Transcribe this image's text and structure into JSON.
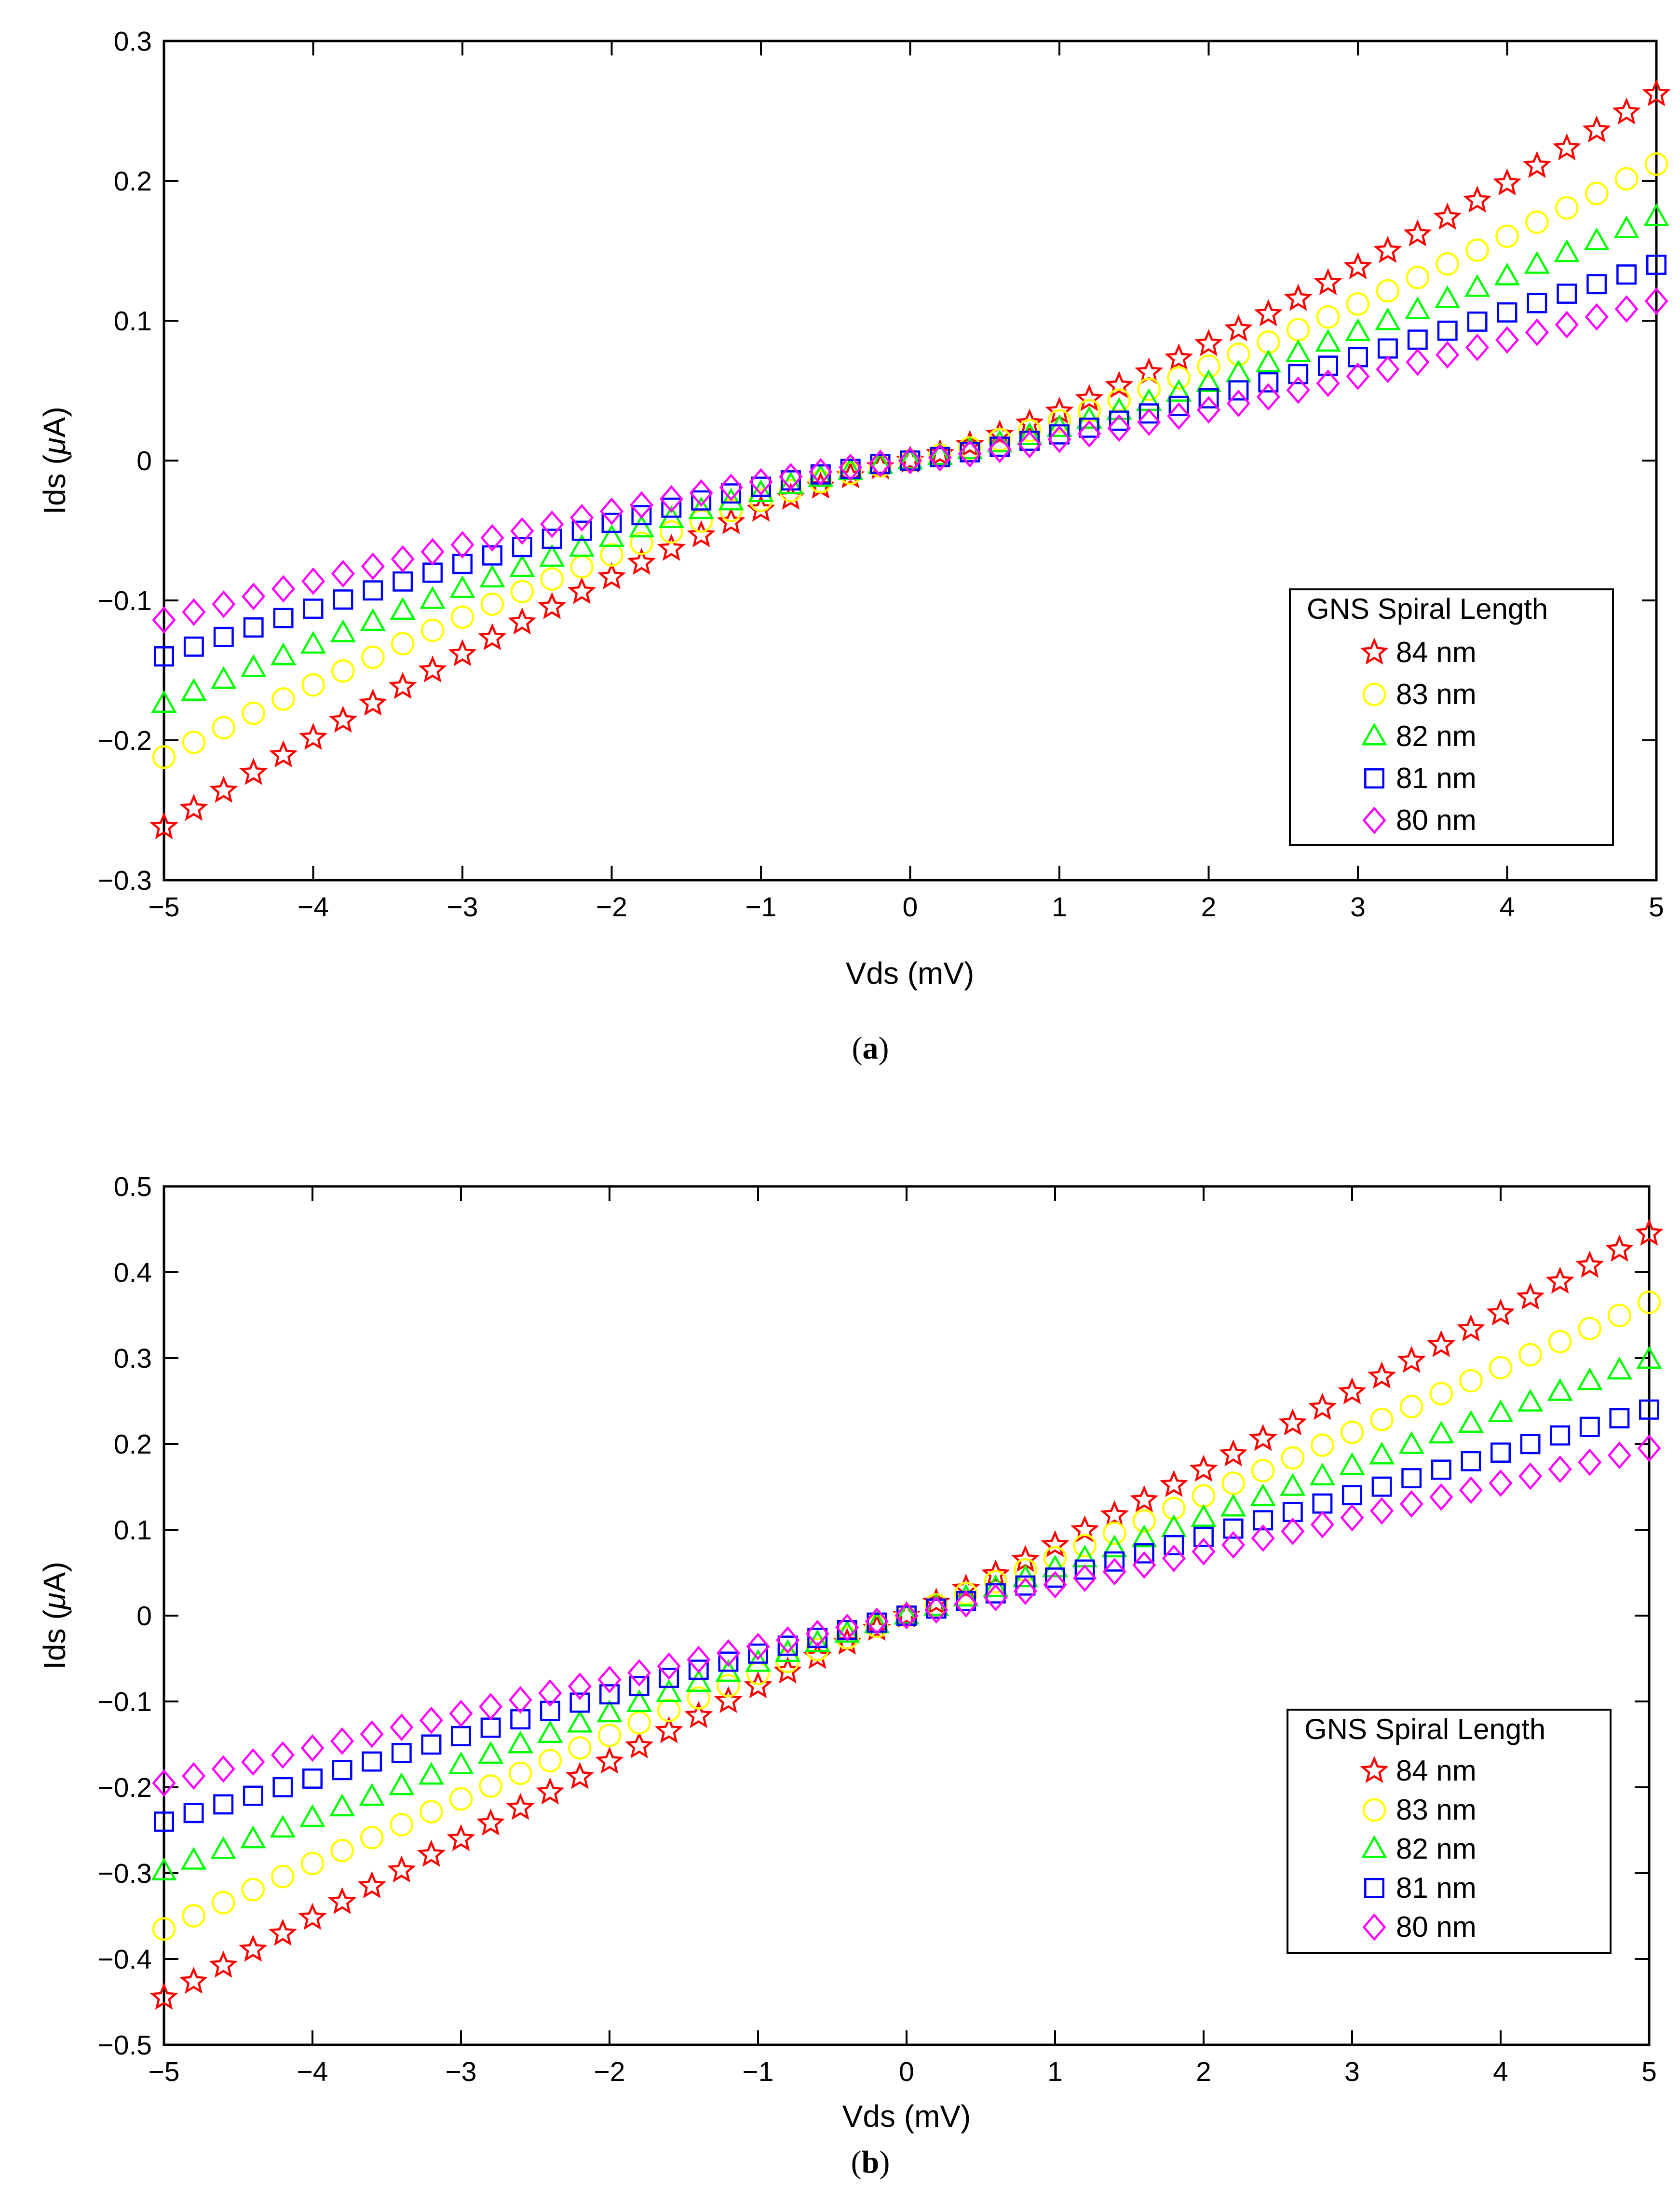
{
  "chart_data": [
    {
      "type": "scatter",
      "panel": "a",
      "caption": {
        "open": "(",
        "letter": "a",
        "close": ")"
      },
      "xlabel": "Vds (mV)",
      "ylabel_prefix": "Ids (",
      "ylabel_mu": "μ",
      "ylabel_suffix": "A)",
      "xlim": [
        -5,
        5
      ],
      "ylim": [
        -0.3,
        0.3
      ],
      "xticks": [
        -5,
        -4,
        -3,
        -2,
        -1,
        0,
        1,
        2,
        3,
        4,
        5
      ],
      "xtick_labels": [
        "−5",
        "−4",
        "−3",
        "−2",
        "−1",
        "0",
        "1",
        "2",
        "3",
        "4",
        "5"
      ],
      "yticks": [
        -0.3,
        -0.2,
        -0.1,
        0,
        0.1,
        0.2,
        0.3
      ],
      "ytick_labels": [
        "−0.3",
        "−0.2",
        "−0.1",
        "0",
        "0.1",
        "0.2",
        "0.3"
      ],
      "legend": {
        "title": "GNS Spiral Length",
        "placement": "lower-right"
      },
      "x_start": -5,
      "x_step": 0.2,
      "n_points": 51,
      "series": [
        {
          "name": "84 nm",
          "marker": "star",
          "color": "#ff0000",
          "max": 0.262,
          "exponent": 1.25
        },
        {
          "name": "83 nm",
          "marker": "circle",
          "color": "#ffff00",
          "max": 0.212,
          "exponent": 1.25
        },
        {
          "name": "82 nm",
          "marker": "triangle",
          "color": "#00ff00",
          "max": 0.174,
          "exponent": 1.25
        },
        {
          "name": "81 nm",
          "marker": "square",
          "color": "#0000ff",
          "max": 0.14,
          "exponent": 1.25
        },
        {
          "name": "80 nm",
          "marker": "diamond",
          "color": "#ff00ff",
          "max": 0.114,
          "exponent": 1.25
        }
      ]
    },
    {
      "type": "scatter",
      "panel": "b",
      "caption": {
        "open": "(",
        "letter": "b",
        "close": ")"
      },
      "xlabel": "Vds (mV)",
      "ylabel_prefix": "Ids (",
      "ylabel_mu": "μ",
      "ylabel_suffix": "A)",
      "xlim": [
        -5,
        5
      ],
      "ylim": [
        -0.5,
        0.5
      ],
      "xticks": [
        -5,
        -4,
        -3,
        -2,
        -1,
        0,
        1,
        2,
        3,
        4,
        5
      ],
      "xtick_labels": [
        "−5",
        "−4",
        "−3",
        "−2",
        "−1",
        "0",
        "1",
        "2",
        "3",
        "4",
        "5"
      ],
      "yticks": [
        -0.5,
        -0.4,
        -0.3,
        -0.2,
        -0.1,
        0,
        0.1,
        0.2,
        0.3,
        0.4,
        0.5
      ],
      "ytick_labels": [
        "−0.5",
        "−0.4",
        "−0.3",
        "−0.2",
        "−0.1",
        "0",
        "0.1",
        "0.2",
        "0.3",
        "0.4",
        "0.5"
      ],
      "legend": {
        "title": "GNS Spiral Length",
        "placement": "lower-right"
      },
      "x_start": -5,
      "x_step": 0.2,
      "n_points": 51,
      "series": [
        {
          "name": "84 nm",
          "marker": "star",
          "color": "#ff0000",
          "max": 0.445,
          "exponent": 1.05
        },
        {
          "name": "83 nm",
          "marker": "circle",
          "color": "#ffff00",
          "max": 0.365,
          "exponent": 1.05
        },
        {
          "name": "82 nm",
          "marker": "triangle",
          "color": "#00ff00",
          "max": 0.298,
          "exponent": 1.05
        },
        {
          "name": "81 nm",
          "marker": "square",
          "color": "#0000ff",
          "max": 0.24,
          "exponent": 1.05
        },
        {
          "name": "80 nm",
          "marker": "diamond",
          "color": "#ff00ff",
          "max": 0.195,
          "exponent": 1.05
        }
      ]
    }
  ]
}
